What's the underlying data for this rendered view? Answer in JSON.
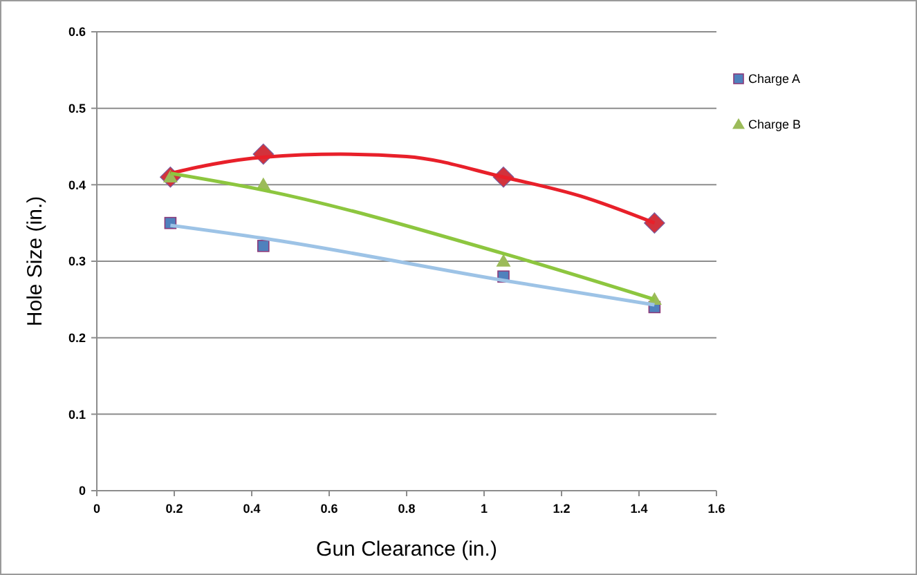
{
  "chart_data": {
    "type": "scatter",
    "xlabel": "Gun Clearance (in.)",
    "ylabel": "Hole Size (in.)",
    "x": [
      0.19,
      0.43,
      1.05,
      1.44
    ],
    "series": [
      {
        "color": "#d2323c",
        "marker": "diamond",
        "values": [
          0.41,
          0.44,
          0.41,
          0.35
        ]
      },
      {
        "name": "Charge A",
        "color": "#4f81bd",
        "marker": "square",
        "values": [
          0.35,
          0.32,
          0.28,
          0.24
        ]
      },
      {
        "name": "Charge B",
        "color": "#9bbb59",
        "marker": "triangle",
        "values": [
          0.41,
          0.4,
          0.3,
          0.25
        ]
      },
      {
        "type": "line",
        "color": "#e8202a",
        "marker": "none",
        "x": [
          0.19,
          0.3,
          0.43,
          0.63,
          0.8,
          1.05,
          1.25,
          1.44
        ],
        "values": [
          0.415,
          0.427,
          0.436,
          0.44,
          0.437,
          0.41,
          0.385,
          0.35
        ]
      },
      {
        "type": "line",
        "color": "#9dc3e6",
        "marker": "none",
        "x": [
          0.19,
          0.43,
          1.05,
          1.44
        ],
        "values": [
          0.347,
          0.33,
          0.275,
          0.243
        ]
      },
      {
        "type": "line",
        "color": "#8dc63f",
        "marker": "none",
        "x": [
          0.19,
          0.43,
          1.05,
          1.44
        ],
        "values": [
          0.415,
          0.393,
          0.31,
          0.25
        ]
      }
    ],
    "xlim": [
      0,
      1.6
    ],
    "xticks": [
      0,
      0.2,
      0.4,
      0.6,
      0.8,
      1,
      1.2,
      1.4,
      1.6
    ],
    "ylim": [
      0,
      0.6
    ],
    "yticks": [
      0,
      0.1,
      0.2,
      0.3,
      0.4,
      0.5,
      0.6
    ],
    "grid": "y",
    "legend": "right"
  }
}
